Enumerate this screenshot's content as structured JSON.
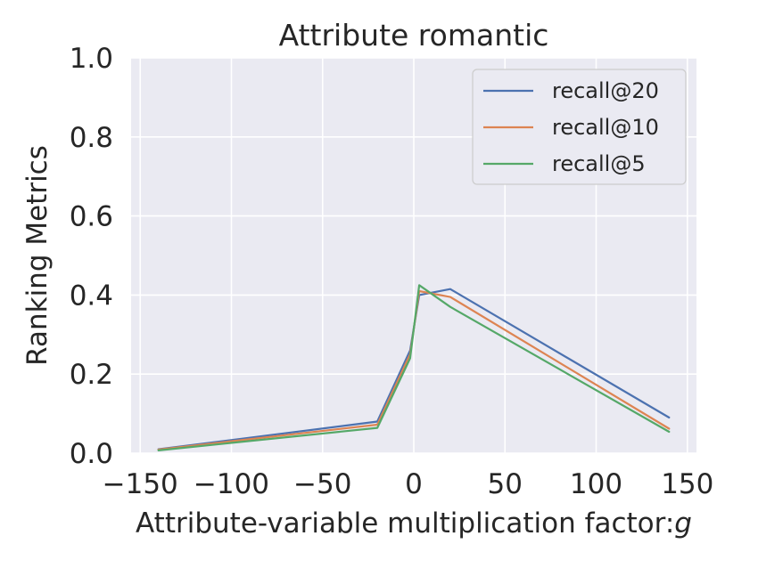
{
  "chart_data": {
    "type": "line",
    "title": "Attribute romantic",
    "xlabel": "Attribute-variable multiplication factor:",
    "xlabel_symbol": "g",
    "ylabel": "Ranking Metrics",
    "xlim": [
      -155,
      155
    ],
    "ylim": [
      0.0,
      1.0
    ],
    "x_ticks": [
      -150,
      -100,
      -50,
      0,
      50,
      100,
      150
    ],
    "x_tick_labels": [
      "−150",
      "−100",
      "−50",
      "0",
      "50",
      "100",
      "150"
    ],
    "y_ticks": [
      0.0,
      0.2,
      0.4,
      0.6,
      0.8,
      1.0
    ],
    "y_tick_labels": [
      "0.0",
      "0.2",
      "0.4",
      "0.6",
      "0.8",
      "1.0"
    ],
    "grid": true,
    "legend_position": "top-right",
    "series": [
      {
        "name": "recall@20",
        "color": "#4c72b0",
        "x": [
          -140,
          -20,
          -2,
          3,
          20,
          140
        ],
        "y": [
          0.01,
          0.08,
          0.26,
          0.4,
          0.415,
          0.09
        ]
      },
      {
        "name": "recall@10",
        "color": "#dd8452",
        "x": [
          -140,
          -20,
          -2,
          3,
          20,
          140
        ],
        "y": [
          0.009,
          0.072,
          0.25,
          0.41,
          0.395,
          0.062
        ]
      },
      {
        "name": "recall@5",
        "color": "#55a868",
        "x": [
          -140,
          -20,
          -2,
          3,
          20,
          140
        ],
        "y": [
          0.007,
          0.064,
          0.24,
          0.425,
          0.37,
          0.054
        ]
      }
    ]
  }
}
